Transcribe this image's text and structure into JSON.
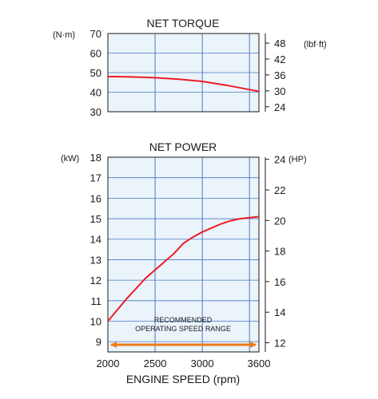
{
  "chart_data": [
    {
      "type": "line",
      "title": "NET TORQUE",
      "x_domain": [
        2000,
        3600
      ],
      "x_grid": [
        2000,
        2500,
        3000,
        3500,
        3600
      ],
      "ylim_left": [
        30,
        70
      ],
      "yticks_left": [
        30,
        40,
        50,
        60,
        70
      ],
      "ylabel_left": "(N·m)",
      "ylim_right": [
        22.13,
        51.63
      ],
      "yticks_right": [
        24,
        30,
        36,
        42,
        48
      ],
      "ylabel_right": "(lbf·ft)",
      "grid": true,
      "color": "#ee1c24",
      "series": [
        {
          "x": [
            2000,
            2250,
            2500,
            2750,
            3000,
            3250,
            3500,
            3600
          ],
          "y": [
            48,
            47.8,
            47.4,
            46.6,
            45.5,
            43.6,
            41.3,
            40.4
          ]
        }
      ]
    },
    {
      "type": "line",
      "title": "NET POWER",
      "x_domain": [
        2000,
        3600
      ],
      "x_grid": [
        2000,
        2500,
        3000,
        3500,
        3600
      ],
      "xticks": [
        2000,
        2500,
        3000,
        3600
      ],
      "xlabel": "ENGINE SPEED (rpm)",
      "ylim_left": [
        8.5,
        18
      ],
      "yticks_left": [
        9,
        10,
        11,
        12,
        13,
        14,
        15,
        16,
        17,
        18
      ],
      "ylabel_left": "(kW)",
      "ylim_right": [
        11.4,
        24.14
      ],
      "yticks_right": [
        12,
        14,
        16,
        18,
        20,
        22,
        24
      ],
      "ylabel_right": "(HP)",
      "grid": true,
      "color": "#ee1c24",
      "series": [
        {
          "x": [
            2000,
            2200,
            2400,
            2600,
            2700,
            2800,
            2900,
            3000,
            3100,
            3200,
            3300,
            3400,
            3500,
            3600
          ],
          "y": [
            10,
            11.1,
            12.1,
            12.9,
            13.3,
            13.8,
            14.1,
            14.35,
            14.55,
            14.75,
            14.9,
            15.0,
            15.05,
            15.1
          ]
        }
      ],
      "annotation": {
        "text": [
          "RECOMMENDED",
          "OPERATING SPEED RANGE"
        ],
        "range": [
          2000,
          3600
        ],
        "arrow_value": 8.85,
        "color": "#ee7d1b"
      }
    }
  ]
}
